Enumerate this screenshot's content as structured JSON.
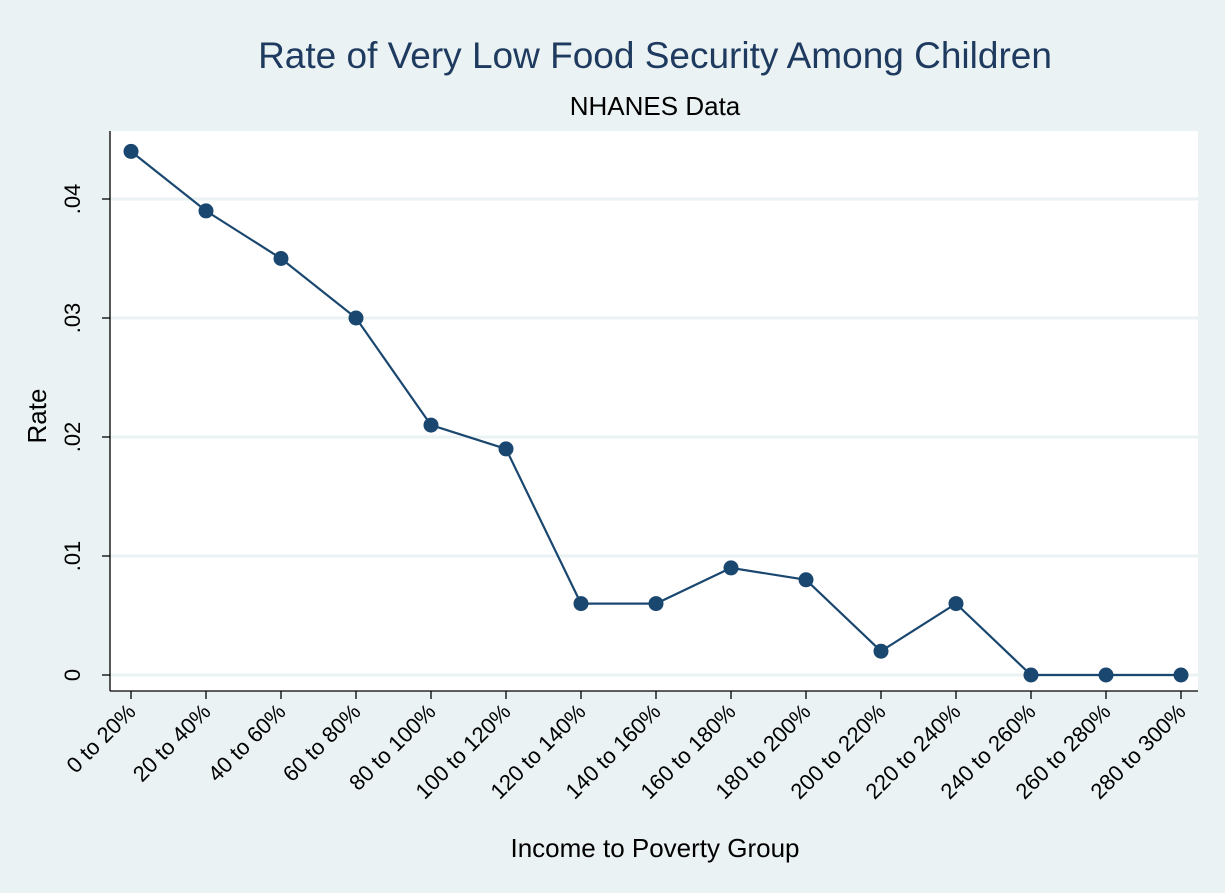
{
  "chart_data": {
    "type": "line",
    "title": "Rate of Very Low Food Security Among Children",
    "subtitle": "NHANES Data",
    "xlabel": "Income to Poverty Group",
    "ylabel": "Rate",
    "categories": [
      "0 to 20%",
      "20 to 40%",
      "40 to 60%",
      "60 to 80%",
      "80 to 100%",
      "100 to 120%",
      "120 to 140%",
      "140 to 160%",
      "160 to 180%",
      "180 to 200%",
      "200 to 220%",
      "220 to 240%",
      "240 to 260%",
      "260 to 280%",
      "280 to 300%"
    ],
    "series": [
      {
        "values": [
          0.044,
          0.039,
          0.035,
          0.03,
          0.021,
          0.019,
          0.006,
          0.006,
          0.009,
          0.008,
          0.002,
          0.006,
          0.0,
          0.0,
          0.0
        ]
      }
    ],
    "yticks": [
      0,
      0.01,
      0.02,
      0.03,
      0.04
    ],
    "ytick_labels": [
      "0",
      ".01",
      ".02",
      ".03",
      ".04"
    ],
    "ylim": [
      0,
      0.044
    ],
    "grid": true,
    "colors": {
      "background": "#eaf2f3",
      "plot_area": "#ffffff",
      "line": "#1a476f",
      "grid": "#eaf2f3",
      "title": "#1e3a5f"
    }
  }
}
